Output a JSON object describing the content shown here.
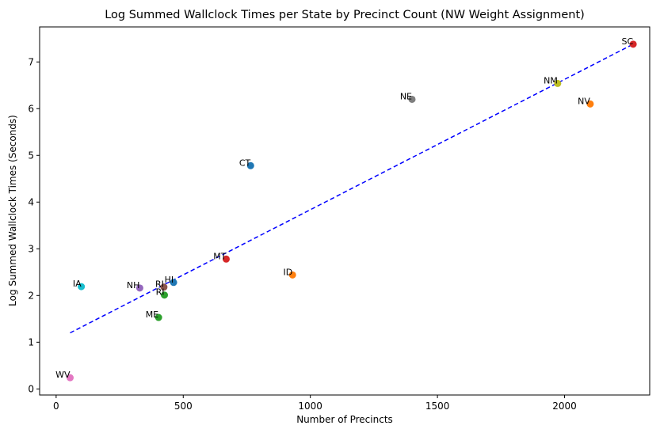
{
  "chart_data": {
    "type": "scatter",
    "title": "Log Summed Wallclock Times per State by Precinct Count (NW Weight Assignment)",
    "xlabel": "Number of Precincts",
    "ylabel": "Log Summed Wallclock Times (Seconds)",
    "xlim": [
      -65,
      2335
    ],
    "ylim": [
      -0.13,
      7.75
    ],
    "xticks": [
      0,
      500,
      1000,
      1500,
      2000
    ],
    "yticks": [
      0,
      1,
      2,
      3,
      4,
      5,
      6,
      7
    ],
    "grid": false,
    "points": [
      {
        "label": "WV",
        "x": 55,
        "y": 0.24,
        "color": "#e377c2"
      },
      {
        "label": "IA",
        "x": 99,
        "y": 2.19,
        "color": "#17becf"
      },
      {
        "label": "NH",
        "x": 329,
        "y": 2.16,
        "color": "#9467bd"
      },
      {
        "label": "ME",
        "x": 403,
        "y": 1.53,
        "color": "#2ca02c"
      },
      {
        "label": "RI",
        "x": 424,
        "y": 2.18,
        "color": "#8c564b"
      },
      {
        "label": "RI",
        "x": 426,
        "y": 2.01,
        "color": "#2ca02c"
      },
      {
        "label": "HI",
        "x": 462,
        "y": 2.28,
        "color": "#1f77b4"
      },
      {
        "label": "MT",
        "x": 669,
        "y": 2.78,
        "color": "#d62728"
      },
      {
        "label": "CT",
        "x": 765,
        "y": 4.78,
        "color": "#1f77b4"
      },
      {
        "label": "ID",
        "x": 930,
        "y": 2.44,
        "color": "#ff7f0e"
      },
      {
        "label": "NE",
        "x": 1400,
        "y": 6.2,
        "color": "#7f7f7f"
      },
      {
        "label": "NM",
        "x": 1973,
        "y": 6.54,
        "color": "#bcbd22"
      },
      {
        "label": "NV",
        "x": 2101,
        "y": 6.1,
        "color": "#ff7f0e"
      },
      {
        "label": "SC",
        "x": 2270,
        "y": 7.38,
        "color": "#d62728"
      }
    ],
    "trendline": {
      "x": [
        55,
        2270
      ],
      "y": [
        1.2,
        7.38
      ],
      "color": "#0000ff",
      "style": "dashed"
    }
  }
}
